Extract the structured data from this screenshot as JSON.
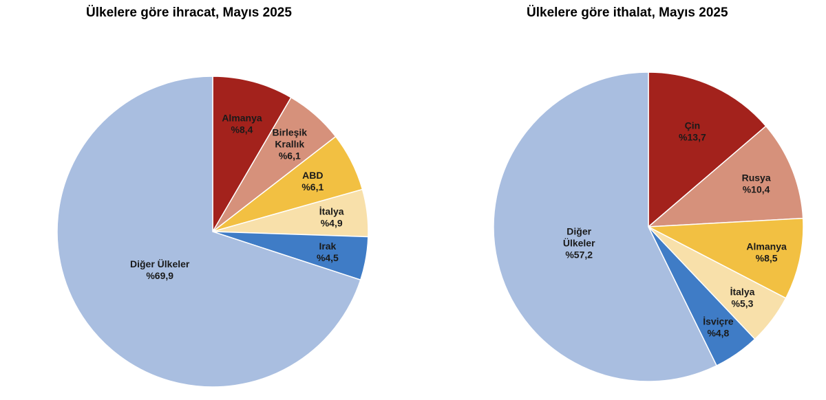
{
  "chart_data": [
    {
      "type": "pie",
      "title": "Ülkelere göre ihracat, Mayıs 2025",
      "slices": [
        {
          "label": [
            "Almanya"
          ],
          "value_text": "%8,4",
          "value": 8.4,
          "color": "#a3221c"
        },
        {
          "label": [
            "Birleşik",
            "Krallık"
          ],
          "value_text": "%6,1",
          "value": 6.1,
          "color": "#d6917b"
        },
        {
          "label": [
            "ABD"
          ],
          "value_text": "%6,1",
          "value": 6.1,
          "color": "#f2c042"
        },
        {
          "label": [
            "İtalya"
          ],
          "value_text": "%4,9",
          "value": 4.9,
          "color": "#f8e0aa"
        },
        {
          "label": [
            "Irak"
          ],
          "value_text": "%4,5",
          "value": 4.5,
          "color": "#3f7cc6"
        },
        {
          "label": [
            "Diğer Ülkeler"
          ],
          "value_text": "%69,9",
          "value": 69.9,
          "color": "#a9bee0"
        }
      ]
    },
    {
      "type": "pie",
      "title": "Ülkelere göre ithalat, Mayıs 2025",
      "slices": [
        {
          "label": [
            "Çin"
          ],
          "value_text": "%13,7",
          "value": 13.7,
          "color": "#a3221c"
        },
        {
          "label": [
            "Rusya"
          ],
          "value_text": "%10,4",
          "value": 10.4,
          "color": "#d6917b"
        },
        {
          "label": [
            "Almanya"
          ],
          "value_text": "%8,5",
          "value": 8.5,
          "color": "#f2c042"
        },
        {
          "label": [
            "İtalya"
          ],
          "value_text": "%5,3",
          "value": 5.3,
          "color": "#f8e0aa"
        },
        {
          "label": [
            "İsviçre"
          ],
          "value_text": "%4,8",
          "value": 4.8,
          "color": "#3f7cc6"
        },
        {
          "label": [
            "Diğer",
            "Ülkeler"
          ],
          "value_text": "%57,2",
          "value": 57.2,
          "color": "#a9bee0"
        }
      ]
    }
  ]
}
